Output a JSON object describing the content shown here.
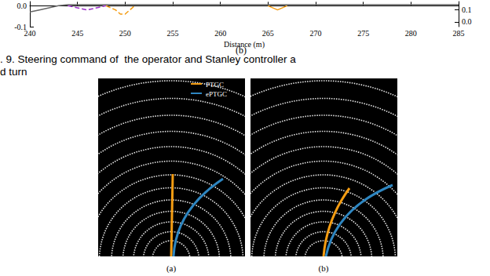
{
  "chart_data": {
    "type": "line",
    "xlabel": "Distance (m)",
    "xlim": [
      240,
      285
    ],
    "xticks": [
      240,
      245,
      250,
      255,
      260,
      265,
      270,
      275,
      280,
      285
    ],
    "ylim": [
      -0.1,
      0.02
    ],
    "yticks": [
      -0.1,
      {
        "value": 0,
        "label": "0.0"
      }
    ],
    "y2lim": [
      -0.04,
      0.17
    ],
    "y2ticks": [
      {
        "value": 0,
        "label": "0.0"
      },
      {
        "value": 0.1,
        "label": "0.1"
      }
    ],
    "grid": false,
    "series": [
      {
        "color": "#666666",
        "line_style": "solid",
        "x": [
          240,
          241,
          242,
          243,
          244,
          246,
          250,
          255,
          260,
          265,
          270,
          275,
          280,
          285
        ],
        "values": [
          -0.03,
          -0.02,
          -0.01,
          0.0,
          0.005,
          0.005,
          0.005,
          0.005,
          0.005,
          0.005,
          0.005,
          0.005,
          0.005,
          0.005
        ]
      },
      {
        "color": "#9b30c8",
        "line_style": "dashed",
        "x": [
          244,
          245,
          246,
          247,
          248
        ],
        "values": [
          0.0,
          -0.01,
          -0.02,
          -0.01,
          0.0
        ]
      },
      {
        "color": "#f39c12",
        "line_style": "dashed",
        "x": [
          248,
          249,
          249.5,
          250,
          250.5,
          251
        ],
        "values": [
          0.0,
          -0.02,
          -0.04,
          -0.04,
          -0.02,
          0.0
        ]
      },
      {
        "color": "#f39c12",
        "line_style": "solid",
        "x": [
          265,
          266,
          267
        ],
        "values": [
          0.0,
          -0.02,
          0.0
        ]
      }
    ]
  },
  "sublabel": "(b)",
  "caption": [
    ". 9. Steering command of  the operator and Stanley controller a",
    "d turn"
  ],
  "figure": {
    "legend": [
      {
        "name": "PTGC",
        "color": "#f39c12"
      },
      {
        "name": "ePTGC",
        "color": "#2e86c1"
      }
    ],
    "panels": [
      "(a)",
      "(b)"
    ]
  }
}
